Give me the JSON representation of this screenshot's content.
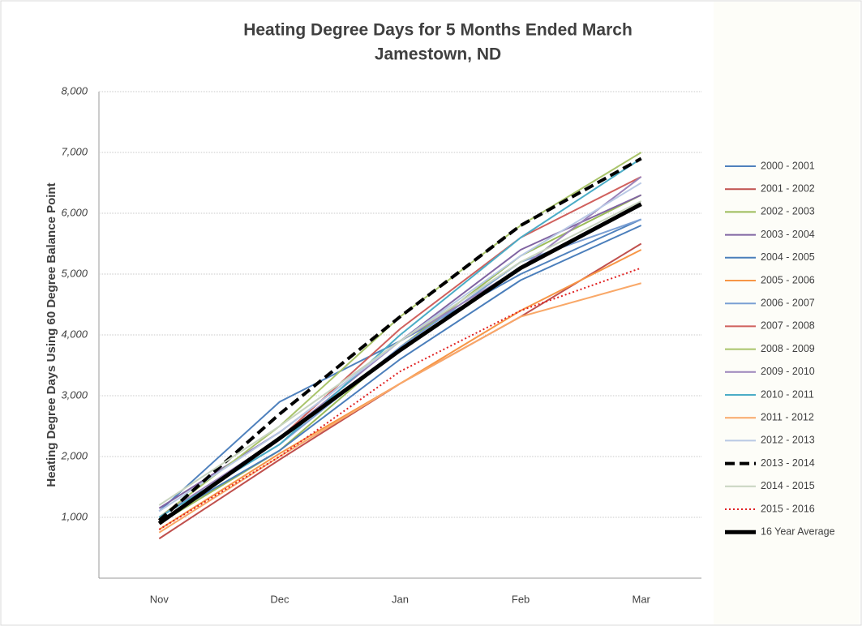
{
  "chart_data": {
    "type": "line",
    "title": "Heating Degree Days for 5 Months Ended March",
    "subtitle": "Jamestown, ND",
    "y_label": "Heating Degree Days Using 60 Degree Balance Point",
    "categories": [
      "Nov",
      "Dec",
      "Jan",
      "Feb",
      "Mar"
    ],
    "ylim": [
      0,
      8000
    ],
    "yticks": [
      {
        "value": 1000,
        "label": "1,000"
      },
      {
        "value": 2000,
        "label": "2,000"
      },
      {
        "value": 3000,
        "label": "3,000"
      },
      {
        "value": 4000,
        "label": "4,000"
      },
      {
        "value": 5000,
        "label": "5,000"
      },
      {
        "value": 6000,
        "label": "6,000"
      },
      {
        "value": 7000,
        "label": "7,000"
      },
      {
        "value": 8000,
        "label": "8,000"
      }
    ],
    "grid": true,
    "legend": "right",
    "series": [
      {
        "name": "2000 - 2001",
        "color": "#4f81bd",
        "width": 2,
        "dash": "solid",
        "values": [
          1100,
          2900,
          3900,
          5000,
          5900
        ]
      },
      {
        "name": "2001 - 2002",
        "color": "#c0504d",
        "width": 2,
        "dash": "solid",
        "values": [
          650,
          1950,
          3200,
          4300,
          5500
        ]
      },
      {
        "name": "2002 - 2003",
        "color": "#9bbb59",
        "width": 2,
        "dash": "solid",
        "values": [
          900,
          2100,
          3800,
          5300,
          6300
        ]
      },
      {
        "name": "2003 - 2004",
        "color": "#8064a2",
        "width": 2,
        "dash": "solid",
        "values": [
          1150,
          2400,
          3900,
          5400,
          6300
        ]
      },
      {
        "name": "2004 - 2005",
        "color": "#4a7ebb",
        "width": 2,
        "dash": "solid",
        "values": [
          950,
          2100,
          3600,
          4900,
          5800
        ]
      },
      {
        "name": "2005 - 2006",
        "color": "#f79646",
        "width": 2,
        "dash": "solid",
        "values": [
          800,
          2050,
          3200,
          4400,
          5400
        ]
      },
      {
        "name": "2006 - 2007",
        "color": "#7a9fd4",
        "width": 2,
        "dash": "solid",
        "values": [
          1000,
          2200,
          3800,
          5200,
          5900
        ]
      },
      {
        "name": "2007 - 2008",
        "color": "#d0605d",
        "width": 2,
        "dash": "solid",
        "values": [
          900,
          2300,
          4100,
          5600,
          6600
        ]
      },
      {
        "name": "2008 - 2009",
        "color": "#a9c46a",
        "width": 2,
        "dash": "solid",
        "values": [
          1000,
          2500,
          4300,
          5800,
          7000
        ]
      },
      {
        "name": "2009 - 2010",
        "color": "#9b84bb",
        "width": 2,
        "dash": "solid",
        "values": [
          1000,
          2300,
          3900,
          5100,
          6600
        ]
      },
      {
        "name": "2010 - 2011",
        "color": "#4bacc6",
        "width": 2,
        "dash": "solid",
        "values": [
          1000,
          2200,
          4000,
          5600,
          6900
        ]
      },
      {
        "name": "2011 - 2012",
        "color": "#f9a868",
        "width": 2,
        "dash": "solid",
        "values": [
          750,
          2000,
          3200,
          4300,
          4850
        ]
      },
      {
        "name": "2012 - 2013",
        "color": "#b9c9e5",
        "width": 2,
        "dash": "solid",
        "values": [
          1100,
          2400,
          3900,
          5300,
          6500
        ]
      },
      {
        "name": "2013 - 2014",
        "color": "#000000",
        "width": 4,
        "dash": "dashed",
        "values": [
          950,
          2700,
          4300,
          5800,
          6900
        ]
      },
      {
        "name": "2014 - 2015",
        "color": "#c8d4c0",
        "width": 2,
        "dash": "solid",
        "values": [
          1200,
          2500,
          3900,
          5200,
          6200
        ]
      },
      {
        "name": "2015 - 2016",
        "color": "#e02020",
        "width": 2,
        "dash": "dotted",
        "values": [
          800,
          2000,
          3400,
          4400,
          5100
        ]
      },
      {
        "name": "16 Year Average",
        "color": "#000000",
        "width": 5,
        "dash": "solid",
        "values": [
          900,
          2300,
          3750,
          5100,
          6150
        ]
      }
    ]
  }
}
